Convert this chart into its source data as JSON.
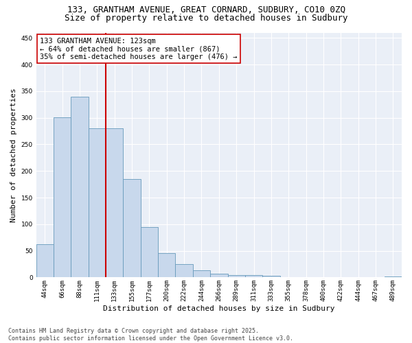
{
  "title_line1": "133, GRANTHAM AVENUE, GREAT CORNARD, SUDBURY, CO10 0ZQ",
  "title_line2": "Size of property relative to detached houses in Sudbury",
  "xlabel": "Distribution of detached houses by size in Sudbury",
  "ylabel": "Number of detached properties",
  "bar_color": "#c8d8ec",
  "bar_edge_color": "#6699bb",
  "categories": [
    "44sqm",
    "66sqm",
    "88sqm",
    "111sqm",
    "133sqm",
    "155sqm",
    "177sqm",
    "200sqm",
    "222sqm",
    "244sqm",
    "266sqm",
    "289sqm",
    "311sqm",
    "333sqm",
    "355sqm",
    "378sqm",
    "400sqm",
    "422sqm",
    "444sqm",
    "467sqm",
    "489sqm"
  ],
  "values": [
    63,
    301,
    339,
    280,
    280,
    185,
    94,
    46,
    25,
    13,
    7,
    5,
    5,
    3,
    1,
    1,
    0,
    0,
    1,
    0,
    2
  ],
  "vline_x": 4.0,
  "vline_color": "#cc0000",
  "annotation_text": "133 GRANTHAM AVENUE: 123sqm\n← 64% of detached houses are smaller (867)\n35% of semi-detached houses are larger (476) →",
  "annotation_box_color": "white",
  "annotation_box_edge": "#cc0000",
  "ylim": [
    0,
    460
  ],
  "yticks": [
    0,
    50,
    100,
    150,
    200,
    250,
    300,
    350,
    400,
    450
  ],
  "background_color": "#eaeff7",
  "grid_color": "white",
  "footer_line1": "Contains HM Land Registry data © Crown copyright and database right 2025.",
  "footer_line2": "Contains public sector information licensed under the Open Government Licence v3.0.",
  "title_fontsize": 9,
  "axis_label_fontsize": 8,
  "tick_fontsize": 6.5,
  "annotation_fontsize": 7.5,
  "footer_fontsize": 6
}
